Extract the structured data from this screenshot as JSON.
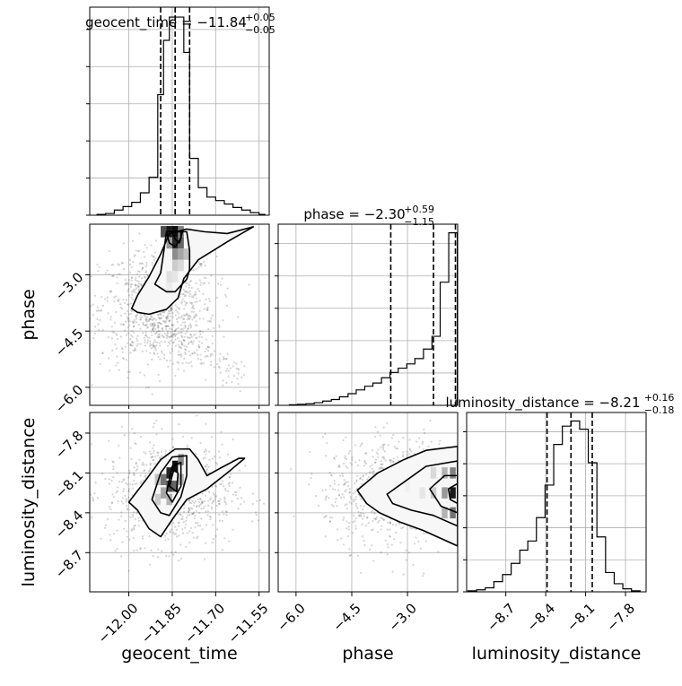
{
  "chart_data": {
    "type": "corner",
    "parameters": [
      "geocent_time",
      "phase",
      "luminosity_distance"
    ],
    "grid": true,
    "marginals": [
      {
        "parameter": "geocent_time",
        "title": "geocent_time = −11.84",
        "title_upper": "+0.05",
        "title_lower": "−0.05",
        "median": -11.84,
        "plus": 0.05,
        "minus": 0.05,
        "quantile_lines": [
          -11.89,
          -11.84,
          -11.79
        ],
        "xlim": [
          -12.135,
          -11.515
        ],
        "bin_edges": [
          -12.11,
          -12.08,
          -12.05,
          -12.02,
          -11.99,
          -11.96,
          -11.93,
          -11.9,
          -11.88,
          -11.86,
          -11.84,
          -11.81,
          -11.79,
          -11.76,
          -11.73,
          -11.7,
          -11.67,
          -11.64,
          -11.61,
          -11.58,
          -11.55,
          -11.53
        ],
        "counts": [
          1,
          2,
          6,
          10,
          15,
          26,
          44,
          140,
          203,
          230,
          230,
          189,
          66,
          32,
          21,
          17,
          13,
          9,
          6,
          3,
          1
        ]
      },
      {
        "parameter": "phase",
        "title": "phase = −2.30",
        "title_upper": "+0.59",
        "title_lower": "−1.15",
        "median": -2.3,
        "plus": 0.59,
        "minus": 1.15,
        "quantile_lines": [
          -3.45,
          -2.3,
          -1.71
        ],
        "xlim": [
          -6.48,
          -1.65
        ],
        "bin_edges": [
          -6.18,
          -5.96,
          -5.73,
          -5.51,
          -5.28,
          -5.05,
          -4.83,
          -4.6,
          -4.38,
          -4.15,
          -3.93,
          -3.7,
          -3.47,
          -3.25,
          -3.02,
          -2.8,
          -2.57,
          -2.34,
          -2.12,
          -1.89,
          -1.66
        ],
        "counts": [
          1,
          2,
          3,
          5,
          8,
          11,
          16,
          22,
          29,
          36,
          42,
          52,
          62,
          70,
          78,
          88,
          106,
          130,
          232,
          325
        ]
      },
      {
        "parameter": "luminosity_distance",
        "title": "luminosity_distance = −8.21",
        "title_upper": "+0.16",
        "title_lower": "−0.18",
        "median": -8.21,
        "plus": 0.16,
        "minus": 0.18,
        "quantile_lines": [
          -8.39,
          -8.21,
          -8.05
        ],
        "xlim": [
          -8.995,
          -7.645
        ],
        "bin_edges": [
          -8.985,
          -8.92,
          -8.855,
          -8.79,
          -8.725,
          -8.66,
          -8.595,
          -8.535,
          -8.47,
          -8.405,
          -8.34,
          -8.275,
          -8.21,
          -8.145,
          -8.08,
          -8.015,
          -7.95,
          -7.885,
          -7.82,
          -7.755,
          -7.69
        ],
        "counts": [
          1,
          2,
          4,
          10,
          17,
          28,
          41,
          50,
          73,
          105,
          145,
          163,
          168,
          160,
          127,
          54,
          19,
          8,
          3,
          1
        ]
      }
    ],
    "panels": [
      {
        "x": "geocent_time",
        "y": "phase",
        "xlim": [
          -12.135,
          -11.515
        ],
        "ylim": [
          -6.48,
          -1.65
        ],
        "yticks": [
          -3.0,
          -4.5,
          -6.0
        ],
        "contours": [
          [
            [
              -11.99,
              -3.9
            ],
            [
              -11.97,
              -3.55
            ],
            [
              -11.93,
              -3.05
            ],
            [
              -11.89,
              -2.45
            ],
            [
              -11.86,
              -1.9
            ],
            [
              -11.8,
              -1.78
            ],
            [
              -11.74,
              -1.85
            ],
            [
              -11.66,
              -1.9
            ],
            [
              -11.57,
              -1.72
            ],
            [
              -11.66,
              -2.12
            ],
            [
              -11.76,
              -2.6
            ],
            [
              -11.81,
              -3.1
            ],
            [
              -11.83,
              -3.62
            ],
            [
              -11.87,
              -3.92
            ],
            [
              -11.93,
              -4.05
            ],
            [
              -11.97,
              -4.0
            ]
          ],
          [
            [
              -11.91,
              -3.25
            ],
            [
              -11.89,
              -2.95
            ],
            [
              -11.88,
              -2.42
            ],
            [
              -11.87,
              -1.85
            ],
            [
              -11.8,
              -1.85
            ],
            [
              -11.79,
              -2.35
            ],
            [
              -11.79,
              -2.85
            ],
            [
              -11.8,
              -3.12
            ],
            [
              -11.84,
              -3.45
            ],
            [
              -11.87,
              -3.45
            ]
          ],
          [
            [
              -11.87,
              -1.85
            ],
            [
              -11.86,
              -2.15
            ],
            [
              -11.84,
              -2.25
            ],
            [
              -11.82,
              -2.02
            ],
            [
              -11.82,
              -1.85
            ]
          ],
          [
            [
              -11.85,
              -1.85
            ],
            [
              -11.84,
              -2.05
            ],
            [
              -11.825,
              -2.15
            ],
            [
              -11.82,
              -2.02
            ],
            [
              -11.815,
              -1.85
            ]
          ]
        ],
        "density_cells": [
          [
            -11.88,
            -1.85,
            0.7
          ],
          [
            -11.86,
            -1.85,
            0.9
          ],
          [
            -11.84,
            -1.85,
            0.95
          ],
          [
            -11.82,
            -1.85,
            0.5
          ],
          [
            -11.86,
            -2.15,
            0.4
          ],
          [
            -11.84,
            -2.15,
            0.85
          ],
          [
            -11.82,
            -2.15,
            0.6
          ],
          [
            -11.84,
            -2.45,
            0.45
          ],
          [
            -11.82,
            -2.45,
            0.35
          ],
          [
            -11.8,
            -2.45,
            0.25
          ],
          [
            -11.84,
            -2.75,
            0.2
          ],
          [
            -11.82,
            -2.75,
            0.15
          ],
          [
            -11.86,
            -3.05,
            0.12
          ],
          [
            -11.84,
            -3.05,
            0.1
          ],
          [
            -11.86,
            -3.35,
            0.08
          ]
        ],
        "scatter_region": {
          "cx": -11.9,
          "cy": -3.9,
          "sx": 0.1,
          "sy": 0.8,
          "extra_arm": [
            [
              -11.95,
              -4.2
            ],
            [
              -11.6,
              -5.7
            ]
          ]
        }
      },
      {
        "x": "geocent_time",
        "y": "luminosity_distance",
        "xlim": [
          -12.135,
          -11.515
        ],
        "ylim": [
          -8.995,
          -7.645
        ],
        "xticks": [
          -12.0,
          -11.85,
          -11.7,
          -11.55
        ],
        "yticks": [
          -7.8,
          -8.1,
          -8.4,
          -8.7
        ],
        "contours": [
          [
            [
              -12.0,
              -8.32
            ],
            [
              -11.94,
              -8.15
            ],
            [
              -11.89,
              -8.0
            ],
            [
              -11.84,
              -7.92
            ],
            [
              -11.79,
              -7.92
            ],
            [
              -11.76,
              -8.0
            ],
            [
              -11.73,
              -8.12
            ],
            [
              -11.68,
              -8.06
            ],
            [
              -11.62,
              -7.99
            ],
            [
              -11.6,
              -7.99
            ],
            [
              -11.66,
              -8.1
            ],
            [
              -11.73,
              -8.22
            ],
            [
              -11.8,
              -8.3
            ],
            [
              -11.85,
              -8.45
            ],
            [
              -11.89,
              -8.58
            ],
            [
              -11.93,
              -8.52
            ],
            [
              -11.97,
              -8.38
            ]
          ],
          [
            [
              -11.92,
              -8.3
            ],
            [
              -11.89,
              -8.1
            ],
            [
              -11.85,
              -7.98
            ],
            [
              -11.8,
              -7.97
            ],
            [
              -11.8,
              -8.12
            ],
            [
              -11.82,
              -8.28
            ],
            [
              -11.86,
              -8.42
            ],
            [
              -11.89,
              -8.4
            ]
          ],
          [
            [
              -11.87,
              -8.25
            ],
            [
              -11.85,
              -8.05
            ],
            [
              -11.82,
              -8.02
            ],
            [
              -11.82,
              -8.2
            ],
            [
              -11.85,
              -8.32
            ]
          ],
          [
            [
              -11.86,
              -8.2
            ],
            [
              -11.845,
              -8.08
            ],
            [
              -11.83,
              -8.1
            ],
            [
              -11.835,
              -8.24
            ]
          ]
        ],
        "density_cells": [
          [
            -11.9,
            -8.15,
            0.25
          ],
          [
            -11.88,
            -8.15,
            0.55
          ],
          [
            -11.86,
            -8.1,
            0.85
          ],
          [
            -11.84,
            -8.05,
            0.95
          ],
          [
            -11.86,
            -8.2,
            0.7
          ],
          [
            -11.84,
            -8.2,
            0.6
          ],
          [
            -11.88,
            -8.25,
            0.35
          ],
          [
            -11.82,
            -8.0,
            0.45
          ],
          [
            -11.86,
            -8.3,
            0.3
          ],
          [
            -11.9,
            -8.3,
            0.2
          ],
          [
            -11.82,
            -8.15,
            0.3
          ]
        ],
        "scatter_region": {
          "cx": -11.86,
          "cy": -8.25,
          "sx": 0.11,
          "sy": 0.2
        }
      },
      {
        "x": "phase",
        "y": "luminosity_distance",
        "xlim": [
          -6.48,
          -1.65
        ],
        "ylim": [
          -8.995,
          -7.645
        ],
        "xticks": [
          -6.0,
          -4.5,
          -3.0
        ],
        "contours": [
          [
            [
              -4.35,
              -8.23
            ],
            [
              -3.8,
              -8.1
            ],
            [
              -3.1,
              -8.0
            ],
            [
              -2.5,
              -7.93
            ],
            [
              -1.65,
              -7.9
            ],
            [
              -1.65,
              -8.65
            ],
            [
              -2.6,
              -8.53
            ],
            [
              -3.2,
              -8.47
            ],
            [
              -3.75,
              -8.4
            ],
            [
              -4.1,
              -8.33
            ]
          ],
          [
            [
              -3.55,
              -8.26
            ],
            [
              -3.0,
              -8.15
            ],
            [
              -2.5,
              -8.05
            ],
            [
              -1.65,
              -8.01
            ],
            [
              -1.65,
              -8.5
            ],
            [
              -2.3,
              -8.42
            ],
            [
              -2.9,
              -8.38
            ],
            [
              -3.4,
              -8.33
            ]
          ],
          [
            [
              -2.4,
              -8.22
            ],
            [
              -2.0,
              -8.12
            ],
            [
              -1.65,
              -8.12
            ],
            [
              -1.65,
              -8.4
            ],
            [
              -2.1,
              -8.35
            ]
          ],
          [
            [
              -1.9,
              -8.22
            ],
            [
              -1.65,
              -8.18
            ],
            [
              -1.65,
              -8.33
            ],
            [
              -1.85,
              -8.3
            ]
          ]
        ],
        "density_cells": [
          [
            -1.78,
            -8.25,
            0.9
          ],
          [
            -1.78,
            -8.1,
            0.5
          ],
          [
            -1.78,
            -8.4,
            0.55
          ],
          [
            -2.0,
            -8.25,
            0.4
          ],
          [
            -2.0,
            -8.1,
            0.3
          ],
          [
            -2.0,
            -8.4,
            0.3
          ],
          [
            -2.3,
            -8.25,
            0.2
          ],
          [
            -2.3,
            -8.1,
            0.15
          ],
          [
            -2.6,
            -8.25,
            0.1
          ],
          [
            -3.0,
            -8.2,
            0.06
          ],
          [
            -3.3,
            -8.2,
            0.05
          ]
        ],
        "scatter_region": {
          "cx": -3.2,
          "cy": -8.25,
          "sx": 1.0,
          "sy": 0.2
        }
      }
    ],
    "diag_xticks": {
      "luminosity_distance": [
        -8.7,
        -8.4,
        -8.1,
        -7.8
      ]
    },
    "xlabels": [
      "geocent_time",
      "phase",
      "luminosity_distance"
    ],
    "ylabels": [
      "phase",
      "luminosity_distance"
    ]
  }
}
